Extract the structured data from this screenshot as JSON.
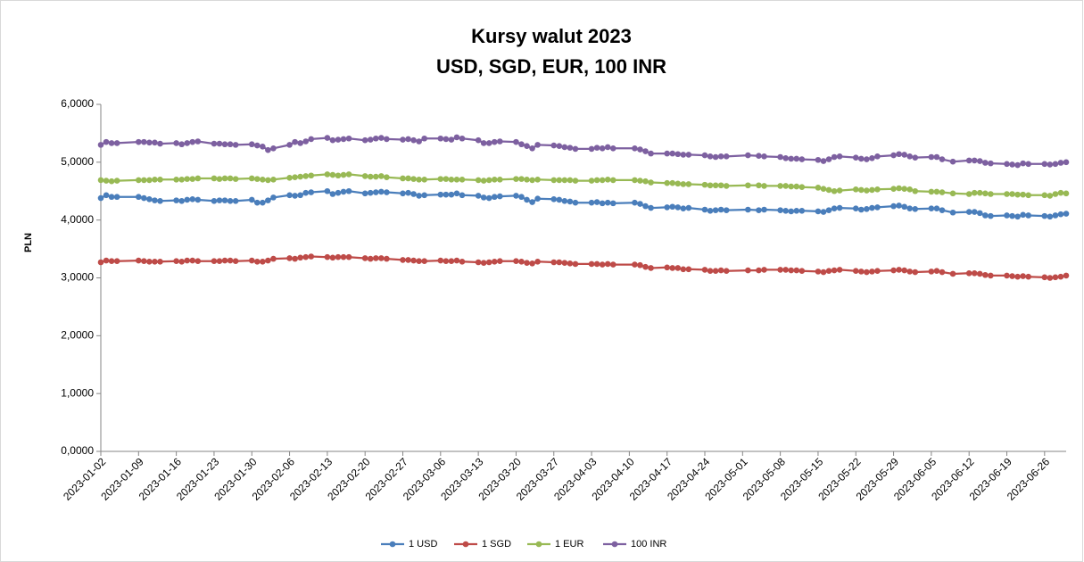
{
  "chart_data": {
    "type": "line",
    "title": "Kursy walut 2023",
    "subtitle": "USD, SGD, EUR, 100 INR",
    "ylabel": "PLN",
    "x": [
      "2023-01-02",
      "2023-01-03",
      "2023-01-04",
      "2023-01-05",
      "2023-01-09",
      "2023-01-10",
      "2023-01-11",
      "2023-01-12",
      "2023-01-13",
      "2023-01-16",
      "2023-01-17",
      "2023-01-18",
      "2023-01-19",
      "2023-01-20",
      "2023-01-23",
      "2023-01-24",
      "2023-01-25",
      "2023-01-26",
      "2023-01-27",
      "2023-01-30",
      "2023-01-31",
      "2023-02-01",
      "2023-02-02",
      "2023-02-03",
      "2023-02-06",
      "2023-02-07",
      "2023-02-08",
      "2023-02-09",
      "2023-02-10",
      "2023-02-13",
      "2023-02-14",
      "2023-02-15",
      "2023-02-16",
      "2023-02-17",
      "2023-02-20",
      "2023-02-21",
      "2023-02-22",
      "2023-02-23",
      "2023-02-24",
      "2023-02-27",
      "2023-02-28",
      "2023-03-01",
      "2023-03-02",
      "2023-03-03",
      "2023-03-06",
      "2023-03-07",
      "2023-03-08",
      "2023-03-09",
      "2023-03-10",
      "2023-03-13",
      "2023-03-14",
      "2023-03-15",
      "2023-03-16",
      "2023-03-17",
      "2023-03-20",
      "2023-03-21",
      "2023-03-22",
      "2023-03-23",
      "2023-03-24",
      "2023-03-27",
      "2023-03-28",
      "2023-03-29",
      "2023-03-30",
      "2023-03-31",
      "2023-04-03",
      "2023-04-04",
      "2023-04-05",
      "2023-04-06",
      "2023-04-07",
      "2023-04-11",
      "2023-04-12",
      "2023-04-13",
      "2023-04-14",
      "2023-04-17",
      "2023-04-18",
      "2023-04-19",
      "2023-04-20",
      "2023-04-21",
      "2023-04-24",
      "2023-04-25",
      "2023-04-26",
      "2023-04-27",
      "2023-04-28",
      "2023-05-02",
      "2023-05-04",
      "2023-05-05",
      "2023-05-08",
      "2023-05-09",
      "2023-05-10",
      "2023-05-11",
      "2023-05-12",
      "2023-05-15",
      "2023-05-16",
      "2023-05-17",
      "2023-05-18",
      "2023-05-19",
      "2023-05-22",
      "2023-05-23",
      "2023-05-24",
      "2023-05-25",
      "2023-05-26",
      "2023-05-29",
      "2023-05-30",
      "2023-05-31",
      "2023-06-01",
      "2023-06-02",
      "2023-06-05",
      "2023-06-06",
      "2023-06-07",
      "2023-06-09",
      "2023-06-12",
      "2023-06-13",
      "2023-06-14",
      "2023-06-15",
      "2023-06-16",
      "2023-06-19",
      "2023-06-20",
      "2023-06-21",
      "2023-06-22",
      "2023-06-23",
      "2023-06-26",
      "2023-06-27",
      "2023-06-28",
      "2023-06-29",
      "2023-06-30"
    ],
    "series": [
      {
        "name": "1 USD",
        "color": "#4a7ebb",
        "values": [
          4.38,
          4.43,
          4.4,
          4.4,
          4.4,
          4.38,
          4.36,
          4.34,
          4.33,
          4.34,
          4.33,
          4.35,
          4.36,
          4.35,
          4.33,
          4.34,
          4.34,
          4.33,
          4.33,
          4.35,
          4.3,
          4.3,
          4.34,
          4.39,
          4.43,
          4.42,
          4.43,
          4.47,
          4.48,
          4.5,
          4.45,
          4.47,
          4.49,
          4.5,
          4.46,
          4.47,
          4.48,
          4.49,
          4.48,
          4.46,
          4.47,
          4.45,
          4.42,
          4.43,
          4.44,
          4.44,
          4.44,
          4.46,
          4.43,
          4.42,
          4.39,
          4.38,
          4.4,
          4.41,
          4.42,
          4.4,
          4.35,
          4.31,
          4.37,
          4.36,
          4.35,
          4.33,
          4.32,
          4.3,
          4.3,
          4.31,
          4.29,
          4.3,
          4.29,
          4.3,
          4.28,
          4.24,
          4.21,
          4.22,
          4.23,
          4.22,
          4.2,
          4.21,
          4.18,
          4.16,
          4.17,
          4.18,
          4.17,
          4.18,
          4.17,
          4.18,
          4.17,
          4.16,
          4.15,
          4.16,
          4.16,
          4.15,
          4.14,
          4.17,
          4.2,
          4.21,
          4.2,
          4.18,
          4.19,
          4.21,
          4.22,
          4.24,
          4.25,
          4.23,
          4.2,
          4.19,
          4.2,
          4.2,
          4.17,
          4.13,
          4.14,
          4.14,
          4.12,
          4.08,
          4.07,
          4.08,
          4.07,
          4.06,
          4.09,
          4.08,
          4.07,
          4.06,
          4.08,
          4.1,
          4.11
        ]
      },
      {
        "name": "1 SGD",
        "color": "#be4b48",
        "values": [
          3.27,
          3.3,
          3.29,
          3.29,
          3.3,
          3.29,
          3.28,
          3.28,
          3.28,
          3.29,
          3.28,
          3.3,
          3.3,
          3.29,
          3.29,
          3.29,
          3.3,
          3.3,
          3.29,
          3.3,
          3.28,
          3.28,
          3.3,
          3.33,
          3.34,
          3.33,
          3.35,
          3.36,
          3.37,
          3.36,
          3.35,
          3.36,
          3.36,
          3.36,
          3.34,
          3.33,
          3.34,
          3.34,
          3.33,
          3.31,
          3.31,
          3.3,
          3.29,
          3.29,
          3.3,
          3.29,
          3.29,
          3.3,
          3.28,
          3.27,
          3.26,
          3.27,
          3.28,
          3.29,
          3.29,
          3.28,
          3.26,
          3.25,
          3.28,
          3.27,
          3.27,
          3.26,
          3.25,
          3.24,
          3.24,
          3.24,
          3.23,
          3.24,
          3.23,
          3.23,
          3.22,
          3.19,
          3.17,
          3.18,
          3.17,
          3.17,
          3.15,
          3.15,
          3.14,
          3.12,
          3.12,
          3.13,
          3.12,
          3.13,
          3.13,
          3.14,
          3.14,
          3.14,
          3.13,
          3.13,
          3.12,
          3.11,
          3.1,
          3.12,
          3.13,
          3.14,
          3.12,
          3.11,
          3.1,
          3.11,
          3.12,
          3.13,
          3.14,
          3.13,
          3.11,
          3.1,
          3.11,
          3.12,
          3.1,
          3.07,
          3.08,
          3.08,
          3.07,
          3.05,
          3.04,
          3.04,
          3.03,
          3.02,
          3.03,
          3.02,
          3.01,
          3.0,
          3.01,
          3.02,
          3.04
        ]
      },
      {
        "name": "1 EUR",
        "color": "#98b954",
        "values": [
          4.69,
          4.68,
          4.67,
          4.68,
          4.69,
          4.69,
          4.69,
          4.7,
          4.7,
          4.7,
          4.7,
          4.71,
          4.71,
          4.72,
          4.72,
          4.71,
          4.72,
          4.72,
          4.71,
          4.72,
          4.71,
          4.7,
          4.69,
          4.7,
          4.73,
          4.74,
          4.75,
          4.76,
          4.77,
          4.79,
          4.78,
          4.77,
          4.78,
          4.79,
          4.76,
          4.75,
          4.75,
          4.76,
          4.74,
          4.72,
          4.72,
          4.71,
          4.7,
          4.7,
          4.71,
          4.71,
          4.7,
          4.7,
          4.7,
          4.69,
          4.68,
          4.69,
          4.7,
          4.7,
          4.71,
          4.71,
          4.7,
          4.69,
          4.7,
          4.69,
          4.69,
          4.69,
          4.69,
          4.68,
          4.68,
          4.69,
          4.69,
          4.7,
          4.69,
          4.69,
          4.68,
          4.67,
          4.65,
          4.64,
          4.64,
          4.63,
          4.62,
          4.62,
          4.61,
          4.6,
          4.6,
          4.6,
          4.59,
          4.6,
          4.6,
          4.59,
          4.59,
          4.59,
          4.58,
          4.58,
          4.57,
          4.56,
          4.54,
          4.52,
          4.5,
          4.51,
          4.53,
          4.52,
          4.51,
          4.52,
          4.53,
          4.54,
          4.55,
          4.54,
          4.53,
          4.5,
          4.49,
          4.49,
          4.48,
          4.46,
          4.45,
          4.47,
          4.47,
          4.46,
          4.45,
          4.45,
          4.45,
          4.44,
          4.44,
          4.43,
          4.43,
          4.42,
          4.45,
          4.47,
          4.46
        ]
      },
      {
        "name": "100 INR",
        "color": "#7d60a0",
        "values": [
          5.3,
          5.35,
          5.33,
          5.33,
          5.35,
          5.35,
          5.34,
          5.34,
          5.32,
          5.33,
          5.31,
          5.33,
          5.35,
          5.36,
          5.32,
          5.32,
          5.31,
          5.31,
          5.3,
          5.31,
          5.29,
          5.27,
          5.21,
          5.24,
          5.3,
          5.35,
          5.33,
          5.36,
          5.4,
          5.42,
          5.38,
          5.39,
          5.4,
          5.41,
          5.38,
          5.39,
          5.41,
          5.42,
          5.4,
          5.39,
          5.4,
          5.38,
          5.36,
          5.41,
          5.41,
          5.4,
          5.39,
          5.43,
          5.41,
          5.38,
          5.33,
          5.33,
          5.35,
          5.36,
          5.35,
          5.31,
          5.28,
          5.24,
          5.3,
          5.29,
          5.28,
          5.26,
          5.25,
          5.23,
          5.23,
          5.25,
          5.24,
          5.26,
          5.24,
          5.24,
          5.22,
          5.19,
          5.15,
          5.15,
          5.15,
          5.14,
          5.13,
          5.13,
          5.12,
          5.1,
          5.09,
          5.1,
          5.1,
          5.12,
          5.11,
          5.1,
          5.09,
          5.07,
          5.06,
          5.06,
          5.05,
          5.04,
          5.02,
          5.05,
          5.09,
          5.1,
          5.08,
          5.06,
          5.05,
          5.07,
          5.1,
          5.12,
          5.14,
          5.13,
          5.1,
          5.08,
          5.09,
          5.09,
          5.05,
          5.01,
          5.03,
          5.03,
          5.02,
          4.99,
          4.98,
          4.97,
          4.96,
          4.95,
          4.98,
          4.97,
          4.97,
          4.96,
          4.97,
          4.99,
          5.0
        ]
      }
    ],
    "xlim": [
      "2023-01-02",
      "2023-06-30"
    ],
    "xticks": [
      "2023-01-02",
      "2023-01-09",
      "2023-01-16",
      "2023-01-23",
      "2023-01-30",
      "2023-02-06",
      "2023-02-13",
      "2023-02-20",
      "2023-02-27",
      "2023-03-06",
      "2023-03-13",
      "2023-03-20",
      "2023-03-27",
      "2023-04-03",
      "2023-04-10",
      "2023-04-17",
      "2023-04-24",
      "2023-05-01",
      "2023-05-08",
      "2023-05-15",
      "2023-05-22",
      "2023-05-29",
      "2023-06-05",
      "2023-06-12",
      "2023-06-19",
      "2023-06-26"
    ],
    "ylim": [
      0,
      6
    ],
    "yticks": [
      {
        "value": 0,
        "label": "0,0000"
      },
      {
        "value": 1,
        "label": "1,0000"
      },
      {
        "value": 2,
        "label": "2,0000"
      },
      {
        "value": 3,
        "label": "3,0000"
      },
      {
        "value": 4,
        "label": "4,0000"
      },
      {
        "value": 5,
        "label": "5,0000"
      },
      {
        "value": 6,
        "label": "6,0000"
      }
    ],
    "grid": false,
    "legend": "bottom"
  }
}
